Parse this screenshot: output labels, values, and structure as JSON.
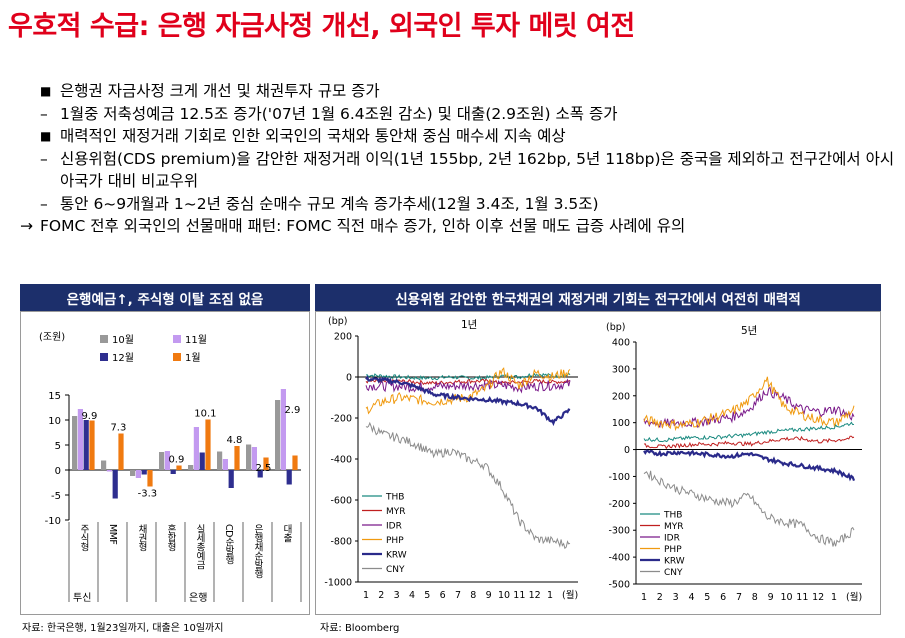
{
  "title": "우호적 수급: 은행 자금사정 개선, 외국인 투자 메릿 여전",
  "bullets": [
    {
      "marker": "■",
      "text": "은행권 자금사정 크게 개선 및 채권투자 규모 증가"
    },
    {
      "marker": "–",
      "text": "1월중 저축성예금 12.5조 증가('07년 1월 6.4조원 감소) 및 대출(2.9조원) 소폭 증가"
    },
    {
      "marker": "■",
      "text": "매력적인 재정거래 기회로 인한 외국인의 국채와 통안채 중심 매수세 지속 예상"
    },
    {
      "marker": "–",
      "text": "신용위험(CDS premium)을 감안한 재정거래 이익(1년 155bp, 2년 162bp, 5년 118bp)은 중국을 제외하고 전구간에서 아시아국가 대비 비교우위"
    },
    {
      "marker": "–",
      "text": "통안 6~9개월과 1~2년 중심 순매수 규모 계속 증가추세(12월 3.4조, 1월 3.5조)"
    },
    {
      "marker": "→",
      "text": "FOMC 전후 외국인의 선물매매 패턴: FOMC 직전 매수 증가, 인하 이후 선물 매도 급증 사례에 유의"
    }
  ],
  "left_panel": {
    "header": "은행예금↑, 주식형 이탈 조짐 없음",
    "source": "자료: 한국은행, 1월23일까지, 대출은 10일까지"
  },
  "right_panel": {
    "header": "신용위험 감안한 한국채권의 재정거래 기회는 전구간에서 여전히 매력적",
    "source": "자료: Bloomberg"
  },
  "colors": {
    "title": "#e0001b",
    "header_bg": "#1c2f6b",
    "c10": "#999999",
    "c11": "#c39af0",
    "c12": "#2e2e8f",
    "c1": "#f07a10",
    "THB": "#1a8a80",
    "MYR": "#c01f1f",
    "IDR": "#7a1a8a",
    "PHP": "#f09a10",
    "KRW": "#2a2a8a",
    "CNY": "#8c8c8c"
  },
  "chart_data": [
    {
      "type": "bar",
      "ylabel": "(조원)",
      "ylim": [
        -10,
        20
      ],
      "yticks": [
        -10,
        -5,
        0,
        5,
        10,
        15
      ],
      "legend_position": "top",
      "categories": [
        "주식형",
        "MMF",
        "채권형",
        "혼합형",
        "실세총예금",
        "CD순발행",
        "은행채순발행",
        "대출"
      ],
      "category_groups": [
        {
          "label": "투신",
          "start": 0
        },
        {
          "label": "은행",
          "start": 4
        }
      ],
      "series": [
        {
          "name": "10월",
          "values": [
            10.8,
            1.9,
            -1.2,
            3.6,
            1.0,
            3.7,
            5.1,
            14.0
          ]
        },
        {
          "name": "11월",
          "values": [
            12.2,
            -0.3,
            -1.6,
            3.8,
            8.6,
            2.2,
            4.6,
            16.2
          ]
        },
        {
          "name": "12월",
          "values": [
            10.0,
            -5.7,
            -0.9,
            -0.8,
            3.5,
            -3.6,
            -1.5,
            -2.9
          ]
        },
        {
          "name": "1월",
          "values": [
            9.9,
            7.3,
            -3.3,
            0.9,
            10.1,
            4.8,
            2.5,
            2.9
          ]
        }
      ],
      "data_labels": [
        "9.9",
        "7.3",
        "-3.3",
        "0.9",
        "10.1",
        "4.8",
        "2.5",
        "2.9"
      ]
    },
    {
      "type": "line",
      "title": "1년",
      "ylabel": "(bp)",
      "xlabel": "(월)",
      "ylim": [
        -1000,
        200
      ],
      "yticks": [
        -1000,
        -800,
        -600,
        -400,
        -200,
        0,
        200
      ],
      "x_ticks": [
        "1",
        "2",
        "3",
        "4",
        "5",
        "6",
        "7",
        "8",
        "9",
        "10",
        "11",
        "12",
        "1"
      ],
      "legend_position": "bottom-left",
      "series": [
        {
          "name": "THB",
          "values": [
            10,
            5,
            0,
            -5,
            -5,
            0,
            -5,
            -5,
            5,
            0,
            15,
            5,
            10
          ]
        },
        {
          "name": "MYR",
          "values": [
            -20,
            -25,
            -20,
            -25,
            -30,
            -25,
            -20,
            -20,
            -30,
            -25,
            -20,
            -25,
            -20
          ]
        },
        {
          "name": "IDR",
          "values": [
            -40,
            -45,
            -45,
            -50,
            -45,
            -45,
            -40,
            -40,
            -40,
            -50,
            -45,
            -40,
            -35
          ]
        },
        {
          "name": "PHP",
          "values": [
            -160,
            -120,
            -100,
            -110,
            -120,
            -110,
            -100,
            -60,
            30,
            -40,
            20,
            0,
            30
          ]
        },
        {
          "name": "KRW",
          "values": [
            -10,
            -15,
            -25,
            -50,
            -85,
            -95,
            -105,
            -110,
            -120,
            -130,
            -150,
            -220,
            -160
          ]
        },
        {
          "name": "CNY",
          "values": [
            -230,
            -280,
            -300,
            -330,
            -380,
            -360,
            -400,
            -430,
            -540,
            -700,
            -790,
            -800,
            -820
          ]
        }
      ]
    },
    {
      "type": "line",
      "title": "5년",
      "ylabel": "(bp)",
      "xlabel": "(월)",
      "ylim": [
        -500,
        400
      ],
      "yticks": [
        -500,
        -400,
        -300,
        -200,
        -100,
        0,
        100,
        200,
        300,
        400
      ],
      "x_ticks": [
        "1",
        "2",
        "3",
        "4",
        "5",
        "6",
        "7",
        "8",
        "9",
        "10",
        "11",
        "12",
        "1"
      ],
      "legend_position": "bottom-left",
      "series": [
        {
          "name": "THB",
          "values": [
            40,
            35,
            40,
            45,
            45,
            50,
            55,
            65,
            70,
            75,
            80,
            85,
            100
          ]
        },
        {
          "name": "MYR",
          "values": [
            15,
            10,
            15,
            20,
            20,
            25,
            20,
            30,
            40,
            40,
            30,
            35,
            45
          ]
        },
        {
          "name": "IDR",
          "values": [
            105,
            95,
            100,
            100,
            110,
            120,
            150,
            220,
            190,
            150,
            140,
            150,
            120
          ]
        },
        {
          "name": "PHP",
          "values": [
            110,
            100,
            90,
            100,
            120,
            140,
            180,
            260,
            160,
            130,
            110,
            100,
            150
          ]
        },
        {
          "name": "KRW",
          "values": [
            -10,
            -15,
            -10,
            -15,
            -20,
            -25,
            -15,
            -35,
            -50,
            -60,
            -70,
            -80,
            -110
          ]
        },
        {
          "name": "CNY",
          "values": [
            -80,
            -120,
            -150,
            -170,
            -190,
            -200,
            -170,
            -250,
            -270,
            -280,
            -330,
            -350,
            -300
          ]
        }
      ]
    }
  ]
}
